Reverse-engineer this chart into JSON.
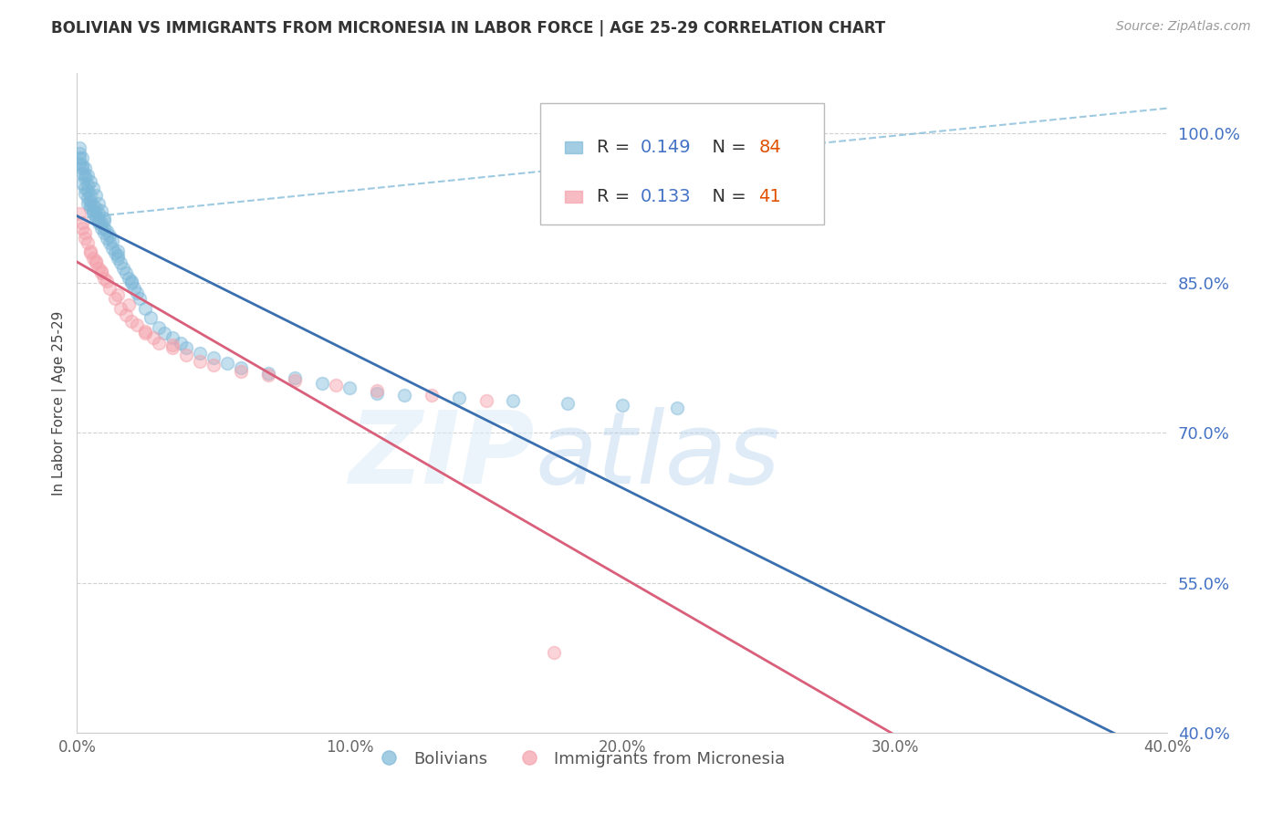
{
  "title": "BOLIVIAN VS IMMIGRANTS FROM MICRONESIA IN LABOR FORCE | AGE 25-29 CORRELATION CHART",
  "source": "Source: ZipAtlas.com",
  "ylabel": "In Labor Force | Age 25-29",
  "xlim": [
    0.0,
    0.4
  ],
  "ylim": [
    0.4,
    1.06
  ],
  "yticks": [
    0.4,
    0.55,
    0.7,
    0.85,
    1.0
  ],
  "ytick_labels": [
    "40.0%",
    "55.0%",
    "70.0%",
    "85.0%",
    "100.0%"
  ],
  "xticks": [
    0.0,
    0.1,
    0.2,
    0.3,
    0.4
  ],
  "xtick_labels": [
    "0.0%",
    "10.0%",
    "20.0%",
    "30.0%",
    "40.0%"
  ],
  "bolivians_x": [
    0.001,
    0.001,
    0.001,
    0.002,
    0.002,
    0.002,
    0.002,
    0.003,
    0.003,
    0.003,
    0.003,
    0.004,
    0.004,
    0.004,
    0.004,
    0.005,
    0.005,
    0.005,
    0.005,
    0.006,
    0.006,
    0.006,
    0.007,
    0.007,
    0.007,
    0.008,
    0.008,
    0.008,
    0.009,
    0.009,
    0.01,
    0.01,
    0.01,
    0.011,
    0.011,
    0.012,
    0.012,
    0.013,
    0.013,
    0.014,
    0.015,
    0.015,
    0.016,
    0.017,
    0.018,
    0.019,
    0.02,
    0.021,
    0.022,
    0.023,
    0.025,
    0.027,
    0.03,
    0.032,
    0.035,
    0.038,
    0.04,
    0.045,
    0.05,
    0.055,
    0.06,
    0.07,
    0.08,
    0.09,
    0.1,
    0.11,
    0.12,
    0.14,
    0.16,
    0.18,
    0.2,
    0.22,
    0.001,
    0.002,
    0.003,
    0.004,
    0.005,
    0.006,
    0.007,
    0.008,
    0.009,
    0.01,
    0.015,
    0.02
  ],
  "bolivians_y": [
    0.97,
    0.975,
    0.98,
    0.95,
    0.96,
    0.965,
    0.968,
    0.94,
    0.945,
    0.955,
    0.958,
    0.93,
    0.935,
    0.942,
    0.948,
    0.925,
    0.928,
    0.932,
    0.938,
    0.92,
    0.922,
    0.928,
    0.915,
    0.918,
    0.925,
    0.91,
    0.912,
    0.92,
    0.905,
    0.91,
    0.9,
    0.905,
    0.912,
    0.895,
    0.902,
    0.89,
    0.898,
    0.885,
    0.892,
    0.88,
    0.875,
    0.882,
    0.87,
    0.865,
    0.86,
    0.855,
    0.85,
    0.845,
    0.84,
    0.835,
    0.825,
    0.815,
    0.805,
    0.8,
    0.795,
    0.79,
    0.785,
    0.78,
    0.775,
    0.77,
    0.765,
    0.76,
    0.755,
    0.75,
    0.745,
    0.74,
    0.738,
    0.735,
    0.732,
    0.73,
    0.728,
    0.725,
    0.985,
    0.975,
    0.965,
    0.958,
    0.952,
    0.945,
    0.938,
    0.93,
    0.922,
    0.915,
    0.878,
    0.852
  ],
  "micronesia_x": [
    0.001,
    0.002,
    0.003,
    0.004,
    0.005,
    0.006,
    0.007,
    0.008,
    0.009,
    0.01,
    0.012,
    0.014,
    0.016,
    0.018,
    0.02,
    0.022,
    0.025,
    0.028,
    0.03,
    0.035,
    0.04,
    0.045,
    0.05,
    0.06,
    0.07,
    0.08,
    0.095,
    0.11,
    0.13,
    0.15,
    0.002,
    0.003,
    0.005,
    0.007,
    0.009,
    0.011,
    0.015,
    0.019,
    0.025,
    0.035,
    0.175
  ],
  "micronesia_y": [
    0.92,
    0.91,
    0.9,
    0.89,
    0.88,
    0.875,
    0.87,
    0.865,
    0.86,
    0.855,
    0.845,
    0.835,
    0.825,
    0.818,
    0.812,
    0.808,
    0.802,
    0.795,
    0.79,
    0.785,
    0.778,
    0.772,
    0.768,
    0.762,
    0.758,
    0.752,
    0.748,
    0.742,
    0.738,
    0.732,
    0.905,
    0.895,
    0.882,
    0.872,
    0.862,
    0.852,
    0.838,
    0.828,
    0.8,
    0.788,
    0.48
  ],
  "bolivian_color": "#7db8d8",
  "micronesia_color": "#f4a0aa",
  "bolivian_line_color": "#3a6faf",
  "micronesia_line_color": "#d95f7a",
  "dashed_line_color": "#7db8d8",
  "R_bolivian": 0.149,
  "N_bolivian": 84,
  "R_micronesia": 0.133,
  "N_micronesia": 41,
  "legend_bolivian": "Bolivians",
  "legend_micronesia": "Immigrants from Micronesia",
  "background_color": "#ffffff",
  "grid_color": "#cccccc",
  "title_color": "#333333",
  "axis_label_color": "#4472c4",
  "source_color": "#999999",
  "R_value_color": "#4472c4",
  "N_value_color": "#e05000"
}
